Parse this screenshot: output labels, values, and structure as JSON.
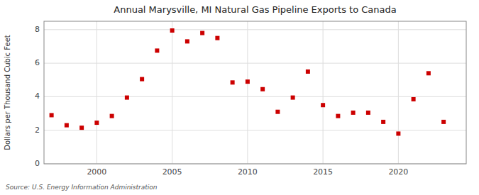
{
  "chart_data": {
    "type": "scatter",
    "title": "Annual Marysville, MI Natural Gas Pipeline Exports to Canada",
    "ylabel": "Dollars per Thousand Cubic Feet",
    "source": "Source: U.S. Energy Information Administration",
    "x": [
      1997,
      1998,
      1999,
      2000,
      2001,
      2002,
      2003,
      2004,
      2005,
      2006,
      2007,
      2008,
      2009,
      2010,
      2011,
      2012,
      2013,
      2014,
      2015,
      2016,
      2017,
      2018,
      2019,
      2020,
      2021,
      2022,
      2023
    ],
    "values": [
      2.9,
      2.3,
      2.15,
      2.45,
      2.85,
      3.95,
      5.05,
      6.75,
      7.95,
      7.3,
      7.8,
      7.5,
      4.85,
      4.9,
      4.45,
      3.1,
      3.95,
      5.5,
      3.5,
      2.85,
      3.05,
      3.05,
      2.5,
      1.8,
      3.85,
      5.4,
      2.5
    ],
    "color": "#cc0000",
    "marker": "square",
    "xlim": [
      1996.5,
      2024.5
    ],
    "ylim": [
      0,
      8.5
    ],
    "xticks": [
      2000,
      2005,
      2010,
      2015,
      2020
    ],
    "yticks": [
      0,
      2,
      4,
      6,
      8
    ],
    "grid": true
  }
}
